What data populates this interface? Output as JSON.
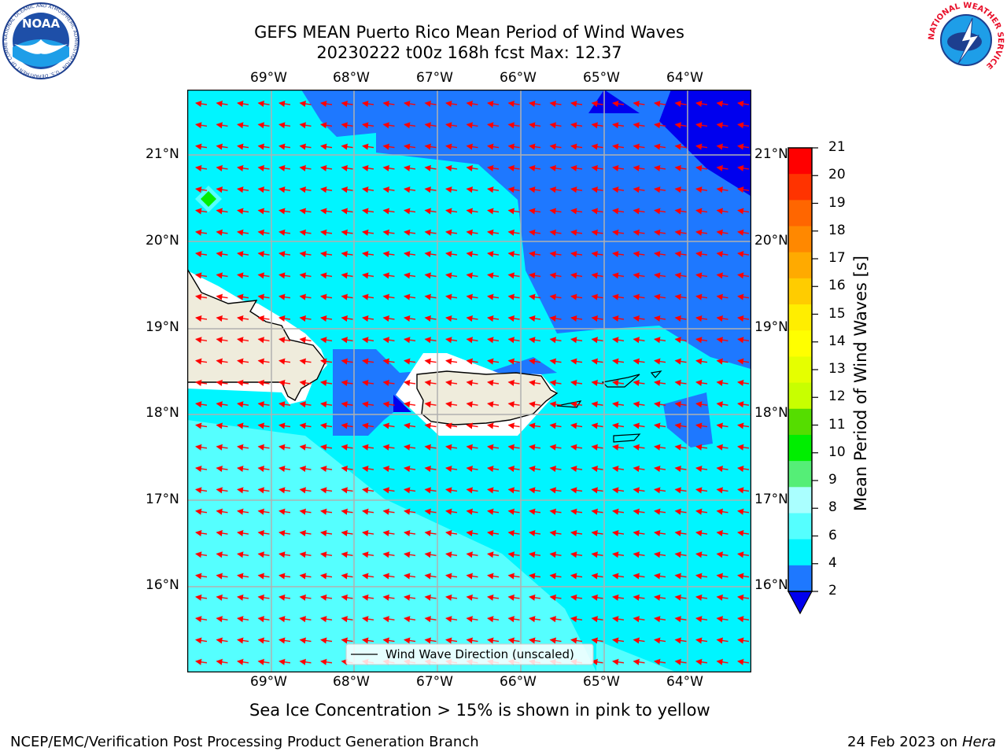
{
  "header": {
    "title_line1": "GEFS MEAN Puerto Rico Mean Period of Wind Waves",
    "title_line2": "20230222 t00z 168h fcst   Max: 12.37",
    "left_logo_text": "NOAA",
    "left_logo_ring": "NATIONAL OCEANIC AND ATMOSPHERIC ADMINISTRATION · U.S. DEPARTMENT OF COMMERCE",
    "right_logo_ring": "NATIONAL WEATHER SERVICE"
  },
  "map": {
    "lon_labels": [
      "69°W",
      "68°W",
      "67°W",
      "66°W",
      "65°W",
      "64°W"
    ],
    "lat_labels": [
      "21°N",
      "20°N",
      "19°N",
      "18°N",
      "17°N",
      "16°N"
    ],
    "legend_label": "Wind Wave Direction (unscaled)",
    "colors": {
      "ocean_deep": "#0000ee",
      "ocean_blue": "#1e78ff",
      "ocean_cyan": "#00f5ff",
      "ocean_light": "#55ffff",
      "land": "#efecdc",
      "arrow": "#ff0000",
      "grid": "#b0b0b0"
    }
  },
  "colorbar": {
    "label": "Mean Period of Wind Waves [s]",
    "ticks": [
      "21",
      "20",
      "19",
      "18",
      "17",
      "16",
      "15",
      "14",
      "13",
      "12",
      "11",
      "10",
      "9",
      "8",
      "6",
      "4",
      "2"
    ],
    "colors": [
      "#ff0000",
      "#ff3300",
      "#ff6600",
      "#ff8800",
      "#ffaa00",
      "#ffcc00",
      "#ffee00",
      "#ffff00",
      "#e5ff00",
      "#c8ff00",
      "#55dd00",
      "#00ee00",
      "#55ee77",
      "#aaffff",
      "#55ffff",
      "#00f5ff",
      "#1e78ff"
    ],
    "extend_color": "#0000ee"
  },
  "footer": {
    "note": "Sea Ice Concentration > 15% is shown in pink to yellow",
    "left": "NCEP/EMC/Verification Post Processing Product Generation Branch",
    "right_date": "24 Feb 2023 on",
    "right_host": "Hera"
  }
}
